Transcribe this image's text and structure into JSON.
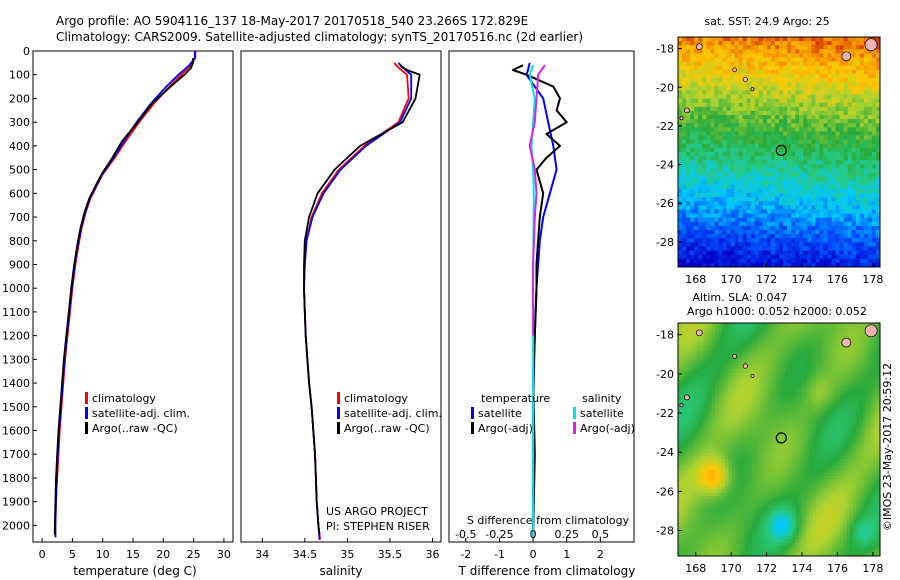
{
  "header": {
    "line1": "Argo profile: AO 5904116_137 18-May-2017 20170518_540 23.266S 172.829E",
    "line2": "Climatology: CARS2009. Satellite-adjusted climatology: synTS_20170516.nc (2d earlier)"
  },
  "side_label": "©IMOS 23-May-2017 20:59:12",
  "colors": {
    "climatology": "#ff0000",
    "satellite": "#0000ff",
    "argo": "#000000",
    "t_sat": "#0000ff",
    "t_argo": "#000000",
    "s_sat": "#00e5e5",
    "s_argo": "#e020e0",
    "land": "#eeb4b4"
  },
  "chart_data": [
    {
      "id": "temperature",
      "type": "line",
      "xlabel": "temperature (deg C)",
      "xticks": [
        0,
        5,
        10,
        15,
        20,
        25,
        30
      ],
      "xlim": [
        -1.5,
        31.5
      ],
      "yticks": [
        0,
        100,
        200,
        300,
        400,
        500,
        600,
        700,
        800,
        900,
        1000,
        1100,
        1200,
        1300,
        1400,
        1500,
        1600,
        1700,
        1800,
        1900,
        2000
      ],
      "ylim": [
        0,
        2070
      ],
      "legend": [
        "climatology",
        "satellite-adj. clim.",
        "Argo(..raw -QC)"
      ],
      "series": [
        {
          "name": "climatology",
          "color_key": "climatology",
          "x": [
            25.3,
            25.3,
            24.5,
            23,
            21,
            18.5,
            16,
            13.8,
            12,
            10,
            9,
            8,
            7.2,
            6.5,
            6,
            5.5,
            5,
            4.6,
            4.2,
            3.8,
            3.5,
            3.2,
            2.9,
            2.7,
            2.5,
            2.3,
            2.2,
            2.2
          ],
          "y": [
            0,
            30,
            60,
            100,
            150,
            220,
            300,
            380,
            450,
            520,
            570,
            620,
            680,
            750,
            820,
            900,
            1000,
            1100,
            1200,
            1300,
            1400,
            1500,
            1600,
            1700,
            1800,
            1900,
            2000,
            2050
          ]
        },
        {
          "name": "satellite-adj. clim.",
          "color_key": "satellite",
          "x": [
            25.2,
            25.2,
            24.3,
            22.5,
            20.5,
            18,
            15.6,
            13.5,
            11.8,
            9.9,
            8.9,
            7.9,
            7.1,
            6.4,
            5.9,
            5.4,
            4.9,
            4.5,
            4.1,
            3.7,
            3.4,
            3.1,
            2.8,
            2.6,
            2.4,
            2.3,
            2.2,
            2.2
          ],
          "y": [
            0,
            30,
            60,
            100,
            150,
            220,
            300,
            380,
            450,
            520,
            570,
            620,
            680,
            750,
            820,
            900,
            1000,
            1100,
            1200,
            1300,
            1400,
            1500,
            1600,
            1700,
            1800,
            1900,
            2000,
            2050
          ]
        },
        {
          "name": "Argo(..raw -QC)",
          "color_key": "argo",
          "x": [
            24.9,
            24.9,
            24.6,
            23.5,
            21.2,
            18.2,
            15.8,
            13.2,
            11.6,
            9.8,
            8.8,
            7.8,
            7,
            6.3,
            5.8,
            5.3,
            4.8,
            4.4,
            4,
            3.6,
            3.3,
            3,
            2.7,
            2.5,
            2.3,
            2.2,
            2.1,
            2.1
          ],
          "y": [
            30,
            50,
            70,
            100,
            150,
            220,
            300,
            380,
            450,
            520,
            570,
            620,
            680,
            750,
            820,
            900,
            1000,
            1100,
            1200,
            1300,
            1400,
            1500,
            1600,
            1700,
            1800,
            1900,
            2000,
            2040
          ]
        }
      ]
    },
    {
      "id": "salinity",
      "type": "line",
      "xlabel": "salinity",
      "xticks": [
        34,
        34.5,
        35,
        35.5,
        36
      ],
      "xlim": [
        33.75,
        36.1
      ],
      "yticks": [
        0,
        100,
        200,
        300,
        400,
        500,
        600,
        700,
        800,
        900,
        1000,
        1100,
        1200,
        1300,
        1400,
        1500,
        1600,
        1700,
        1800,
        1900,
        2000
      ],
      "ylim": [
        0,
        2070
      ],
      "legend": [
        "climatology",
        "satellite-adj. clim.",
        "Argo(..raw -QC)"
      ],
      "annotation": [
        "US ARGO PROJECT",
        "PI: STEPHEN RISER"
      ],
      "series": [
        {
          "name": "climatology",
          "color_key": "climatology",
          "x": [
            35.55,
            35.6,
            35.7,
            35.72,
            35.6,
            35.2,
            34.9,
            34.7,
            34.58,
            34.52,
            34.5,
            34.49,
            34.5,
            34.51,
            34.53,
            34.55,
            34.58,
            34.6,
            34.62,
            34.63,
            34.64,
            34.65,
            34.66,
            34.67,
            34.68
          ],
          "y": [
            50,
            70,
            100,
            200,
            300,
            400,
            500,
            600,
            700,
            800,
            900,
            1000,
            1100,
            1200,
            1300,
            1400,
            1500,
            1600,
            1700,
            1800,
            1900,
            1950,
            2000,
            2030,
            2060
          ]
        },
        {
          "name": "satellite-adj. clim.",
          "color_key": "satellite",
          "x": [
            35.6,
            35.65,
            35.75,
            35.75,
            35.62,
            35.22,
            34.92,
            34.72,
            34.59,
            34.52,
            34.5,
            34.49,
            34.5,
            34.51,
            34.53,
            34.55,
            34.58,
            34.6,
            34.62,
            34.63,
            34.64,
            34.65,
            34.66,
            34.67,
            34.67
          ],
          "y": [
            50,
            70,
            100,
            200,
            300,
            400,
            500,
            600,
            700,
            800,
            900,
            1000,
            1100,
            1200,
            1300,
            1400,
            1500,
            1600,
            1700,
            1800,
            1900,
            1950,
            2000,
            2030,
            2060
          ]
        },
        {
          "name": "Argo(..raw -QC)",
          "color_key": "argo",
          "x": [
            35.62,
            35.7,
            35.85,
            35.8,
            35.65,
            35.15,
            34.85,
            34.65,
            34.55,
            34.5,
            34.49,
            34.49,
            34.5,
            34.51,
            34.53,
            34.55,
            34.58,
            34.6,
            34.62,
            34.63,
            34.64,
            34.65,
            34.66,
            34.67
          ],
          "y": [
            60,
            80,
            100,
            200,
            300,
            400,
            500,
            600,
            700,
            800,
            900,
            1000,
            1100,
            1200,
            1300,
            1400,
            1500,
            1600,
            1700,
            1800,
            1900,
            1950,
            2000,
            2040
          ]
        }
      ]
    },
    {
      "id": "difference",
      "type": "line",
      "xlabel": "T difference from climatology",
      "xlabel_top": "S difference from climatology",
      "xticks": [
        -2,
        -1,
        0,
        1,
        2
      ],
      "xticks_top": [
        "-0.5",
        "-0.25",
        "0",
        "0.25",
        "0.5"
      ],
      "xlim": [
        -2.5,
        3.0
      ],
      "yticks": [
        0,
        100,
        200,
        300,
        400,
        500,
        600,
        700,
        800,
        900,
        1000,
        1100,
        1200,
        1300,
        1400,
        1500,
        1600,
        1700,
        1800,
        1900,
        2000
      ],
      "ylim": [
        0,
        2070
      ],
      "legend_groups": [
        {
          "title": "temperature",
          "items": [
            "satellite",
            "Argo(-adj)"
          ]
        },
        {
          "title": "salinity",
          "items": [
            "satellite",
            "Argo(-adj)"
          ]
        }
      ],
      "series": [
        {
          "name": "temperature satellite",
          "color_key": "t_sat",
          "x": [
            -0.1,
            -0.15,
            -0.2,
            0.3,
            0.45,
            0.6,
            0.7,
            0.5,
            0.3,
            0.2,
            0.15,
            0.1,
            0.05,
            0,
            0
          ],
          "y": [
            50,
            80,
            100,
            200,
            300,
            400,
            500,
            600,
            700,
            800,
            900,
            1000,
            1200,
            1500,
            2050
          ]
        },
        {
          "name": "temperature Argo(-adj)",
          "color_key": "t_argo",
          "x": [
            -0.3,
            -0.6,
            -0.2,
            0.6,
            0.8,
            0.7,
            1.0,
            0.4,
            0.8,
            0.4,
            0.1,
            0.3,
            0.2,
            0.15,
            0.1,
            0.1,
            0.05,
            0,
            0.05,
            0
          ],
          "y": [
            60,
            80,
            100,
            150,
            200,
            250,
            300,
            350,
            400,
            450,
            500,
            600,
            700,
            800,
            900,
            1000,
            1200,
            1400,
            1700,
            2040
          ]
        },
        {
          "name": "salinity satellite",
          "color_key": "s_sat",
          "x": [
            0,
            -0.05,
            -0.1,
            0.05,
            0.0,
            -0.05,
            0.0,
            0.02,
            0,
            0
          ],
          "y": [
            60,
            80,
            100,
            200,
            300,
            400,
            500,
            600,
            1000,
            2050
          ]
        },
        {
          "name": "salinity Argo(-adj)",
          "color_key": "s_argo",
          "x": [
            0.35,
            0.25,
            0.15,
            0.1,
            0.05,
            -0.1,
            0.05,
            0.1,
            0.05,
            0,
            0
          ],
          "y": [
            60,
            80,
            100,
            200,
            300,
            400,
            500,
            600,
            700,
            900,
            1200
          ]
        }
      ]
    },
    {
      "id": "sst_map",
      "type": "heatmap",
      "title": "sat. SST: 24.9  Argo: 25",
      "xticks": [
        168,
        170,
        172,
        174,
        176,
        178
      ],
      "yticks": [
        -18,
        -20,
        -22,
        -24,
        -26,
        -28
      ],
      "xlim": [
        167,
        178.4
      ],
      "ylim": [
        -29.3,
        -17.4
      ],
      "argo_position": {
        "lon": 172.829,
        "lat": -23.266
      }
    },
    {
      "id": "sla_map",
      "type": "heatmap",
      "title": [
        "Altim. SLA: 0.047",
        "Argo h1000: 0.052 h2000: 0.052"
      ],
      "xticks": [
        168,
        170,
        172,
        174,
        176,
        178
      ],
      "yticks": [
        -18,
        -20,
        -22,
        -24,
        -26,
        -28
      ],
      "xlim": [
        167,
        178.4
      ],
      "ylim": [
        -29.3,
        -17.4
      ],
      "argo_position": {
        "lon": 172.829,
        "lat": -23.266
      }
    }
  ]
}
